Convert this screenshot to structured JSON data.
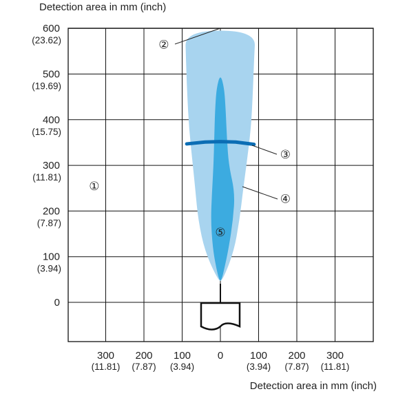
{
  "chart_data": {
    "type": "area",
    "ylabel": "Detection area in mm (inch)",
    "xlabel": "Detection area in mm (inch)",
    "xlim": [
      -300,
      300
    ],
    "ylim": [
      0,
      600
    ],
    "grid": true,
    "y_ticks": [
      {
        "value": 600,
        "mm": "600",
        "inch": "(23.62)"
      },
      {
        "value": 500,
        "mm": "500",
        "inch": "(19.69)"
      },
      {
        "value": 400,
        "mm": "400",
        "inch": "(15.75)"
      },
      {
        "value": 300,
        "mm": "300",
        "inch": "(11.81)"
      },
      {
        "value": 200,
        "mm": "200",
        "inch": "(7.87)"
      },
      {
        "value": 100,
        "mm": "100",
        "inch": "(3.94)"
      },
      {
        "value": 0,
        "mm": "0",
        "inch": ""
      }
    ],
    "x_ticks": [
      {
        "value": -300,
        "mm": "300",
        "inch": "(11.81)"
      },
      {
        "value": -200,
        "mm": "200",
        "inch": "(7.87)"
      },
      {
        "value": -100,
        "mm": "100",
        "inch": "(3.94)"
      },
      {
        "value": 0,
        "mm": "0",
        "inch": ""
      },
      {
        "value": 100,
        "mm": "100",
        "inch": "(3.94)"
      },
      {
        "value": 200,
        "mm": "200",
        "inch": "(7.87)"
      },
      {
        "value": 300,
        "mm": "300",
        "inch": "(11.81)"
      }
    ],
    "series": [
      {
        "color": "#a8d4ef",
        "points": [
          [
            -5,
            47
          ],
          [
            -40,
            110
          ],
          [
            -58,
            180
          ],
          [
            -66,
            250
          ],
          [
            -72,
            300
          ],
          [
            -82,
            380
          ],
          [
            -87,
            460
          ],
          [
            -90,
            530
          ],
          [
            -92,
            595
          ],
          [
            92,
            595
          ],
          [
            88,
            530
          ],
          [
            85,
            460
          ],
          [
            80,
            380
          ],
          [
            68,
            300
          ],
          [
            60,
            250
          ],
          [
            50,
            180
          ],
          [
            35,
            110
          ],
          [
            5,
            47
          ]
        ]
      },
      {
        "color": "#3cabe0",
        "points": [
          [
            -3,
            48
          ],
          [
            -12,
            80
          ],
          [
            -20,
            120
          ],
          [
            -25,
            180
          ],
          [
            -22,
            240
          ],
          [
            -18,
            300
          ],
          [
            -16,
            360
          ],
          [
            -14,
            420
          ],
          [
            -10,
            470
          ],
          [
            0,
            500
          ],
          [
            10,
            470
          ],
          [
            14,
            420
          ],
          [
            17,
            360
          ],
          [
            22,
            300
          ],
          [
            38,
            240
          ],
          [
            33,
            180
          ],
          [
            22,
            120
          ],
          [
            12,
            80
          ],
          [
            3,
            48
          ]
        ]
      },
      {
        "color": "#0b6db4",
        "points": [
          [
            -88,
            347
          ],
          [
            -40,
            351
          ],
          [
            0,
            352
          ],
          [
            40,
            351
          ],
          [
            88,
            346
          ]
        ]
      }
    ],
    "annotations": [
      {
        "text": "①",
        "x": -330,
        "y": 255
      },
      {
        "text": "②",
        "x": -148,
        "y": 565
      },
      {
        "text": "③",
        "x": 170,
        "y": 324
      },
      {
        "text": "④",
        "x": 170,
        "y": 227
      },
      {
        "text": "⑤",
        "x": 0,
        "y": 154
      }
    ]
  }
}
